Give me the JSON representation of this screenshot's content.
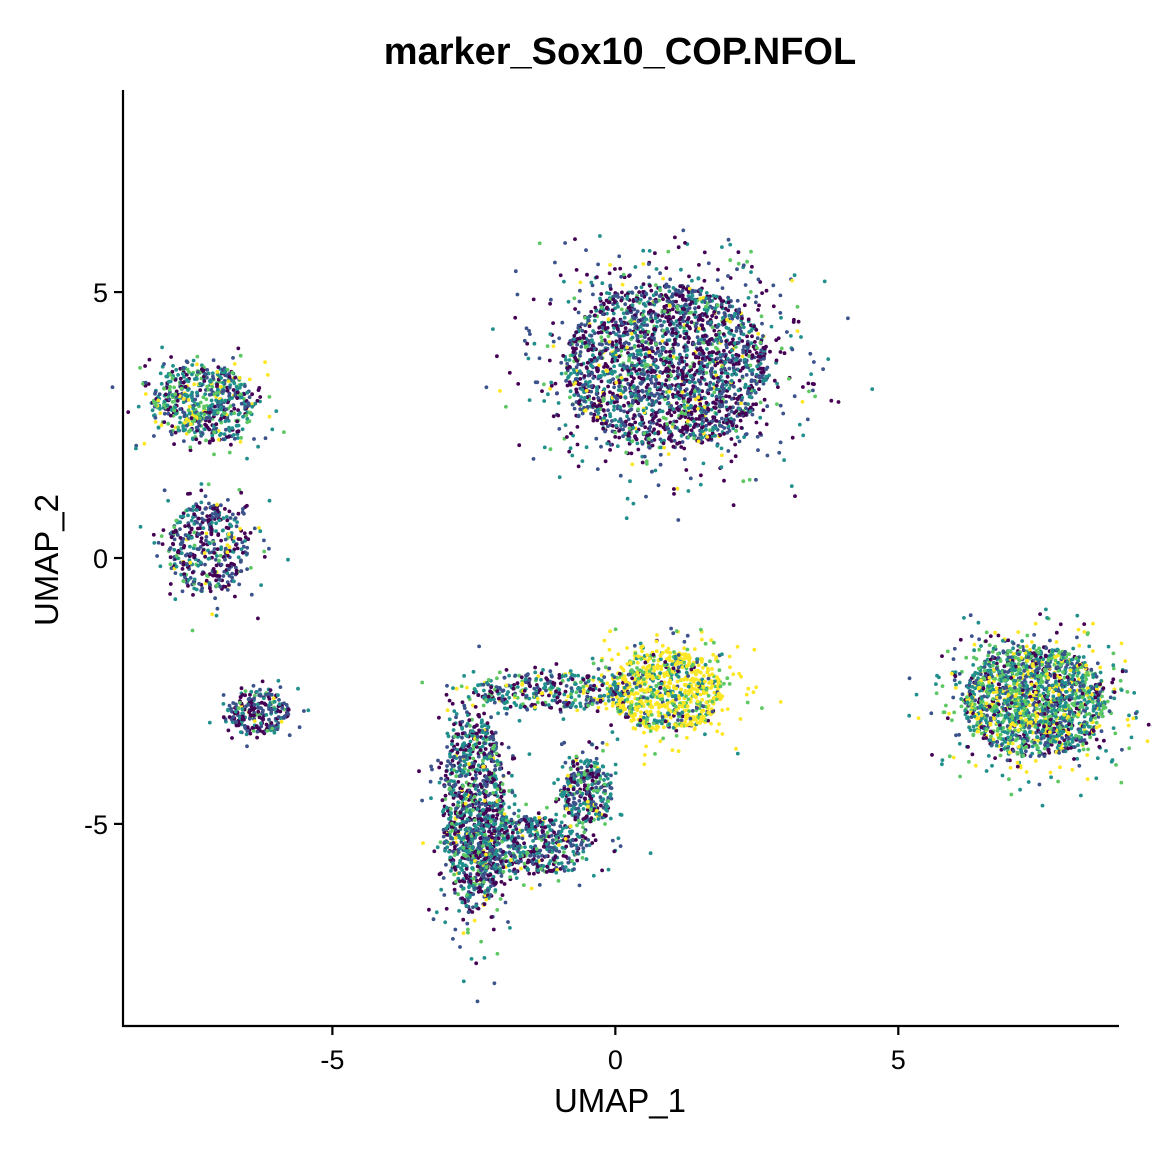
{
  "chart_data": {
    "type": "scatter",
    "title": "marker_Sox10_COP.NFOL",
    "xlabel": "UMAP_1",
    "ylabel": "UMAP_2",
    "xlim": [
      -8.7,
      8.9
    ],
    "ylim": [
      -8.8,
      8.8
    ],
    "x_ticks": [
      -5,
      0,
      5
    ],
    "x_tick_labels": [
      "-5",
      "0",
      "5"
    ],
    "y_ticks": [
      -5,
      0,
      5
    ],
    "y_tick_labels": [
      "-5",
      "0",
      "5"
    ],
    "grid": false,
    "legend": "none",
    "color_scale": "viridis",
    "colors": [
      "#440154",
      "#3b528b",
      "#21908c",
      "#5dc863",
      "#fde725"
    ],
    "clusters": [
      {
        "name": "cluster_top_center",
        "center": [
          0.9,
          3.6
        ],
        "radius": [
          1.8,
          1.55
        ],
        "n": 2600,
        "palette_weights": [
          0.36,
          0.3,
          0.22,
          0.08,
          0.04
        ]
      },
      {
        "name": "cluster_top_left",
        "center": [
          -7.3,
          2.9
        ],
        "radius": [
          0.9,
          0.75
        ],
        "n": 650,
        "palette_weights": [
          0.18,
          0.22,
          0.32,
          0.2,
          0.08
        ]
      },
      {
        "name": "cluster_mid_left",
        "center": [
          -7.2,
          0.2
        ],
        "radius": [
          0.7,
          0.85
        ],
        "n": 450,
        "palette_weights": [
          0.35,
          0.3,
          0.22,
          0.09,
          0.04
        ]
      },
      {
        "name": "cluster_lower_left",
        "center": [
          -6.3,
          -2.9
        ],
        "radius": [
          0.55,
          0.4
        ],
        "n": 260,
        "palette_weights": [
          0.38,
          0.32,
          0.2,
          0.07,
          0.03
        ]
      },
      {
        "name": "cluster_right",
        "center": [
          7.4,
          -2.7
        ],
        "radius": [
          1.25,
          1.05
        ],
        "n": 1900,
        "palette_weights": [
          0.12,
          0.18,
          0.3,
          0.24,
          0.16
        ]
      },
      {
        "name": "cluster_yellow",
        "center": [
          0.9,
          -2.5
        ],
        "radius": [
          1.0,
          0.75
        ],
        "n": 900,
        "palette_weights": [
          0.04,
          0.06,
          0.12,
          0.18,
          0.6
        ]
      },
      {
        "name": "arc_left_bottom",
        "center": [
          -2.5,
          -4.8
        ],
        "radius": [
          0.55,
          1.9
        ],
        "n": 1100,
        "palette_weights": [
          0.28,
          0.26,
          0.3,
          0.12,
          0.04
        ]
      },
      {
        "name": "arc_bottom",
        "center": [
          -1.6,
          -5.4
        ],
        "radius": [
          1.1,
          0.55
        ],
        "n": 600,
        "palette_weights": [
          0.28,
          0.26,
          0.3,
          0.12,
          0.04
        ]
      },
      {
        "name": "arc_top",
        "center": [
          -1.2,
          -2.5
        ],
        "radius": [
          1.3,
          0.35
        ],
        "n": 350,
        "palette_weights": [
          0.22,
          0.24,
          0.34,
          0.14,
          0.06
        ]
      },
      {
        "name": "arc_right",
        "center": [
          -0.5,
          -4.4
        ],
        "radius": [
          0.45,
          0.6
        ],
        "n": 320,
        "palette_weights": [
          0.25,
          0.28,
          0.3,
          0.12,
          0.05
        ]
      }
    ]
  }
}
